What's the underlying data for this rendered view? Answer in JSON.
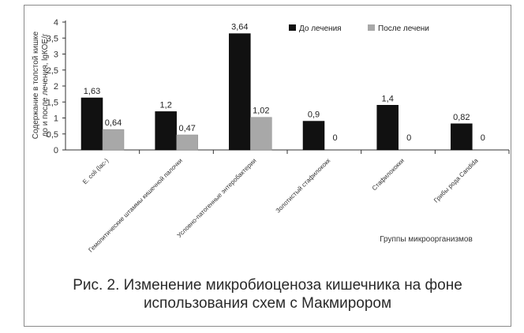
{
  "chart_data": {
    "type": "bar",
    "ylabel": "Содержание в толстой кишке до и после лечения, lgКОЕ/г",
    "xlabel": "Группы микроорганизмов",
    "ylim": [
      0,
      4
    ],
    "yticks": [
      "0",
      "0,5",
      "1",
      "1,5",
      "2",
      "2,5",
      "3",
      "3,5",
      "4"
    ],
    "ytick_values": [
      0,
      0.5,
      1,
      1.5,
      2,
      2.5,
      3,
      3.5,
      4
    ],
    "categories": [
      "E. coli (lac-)",
      "Гемолитические штаммы кишечной палочки",
      "Условно-патогенные энтеробактерии",
      "Золотистый стафилококк",
      "Стафилококки",
      "Грибы рода Candida"
    ],
    "series": [
      {
        "name": "До лечения",
        "color": "#111111",
        "values": [
          1.63,
          1.2,
          3.64,
          0.9,
          1.4,
          0.82
        ],
        "labels": [
          "1,63",
          "1,2",
          "3,64",
          "0,9",
          "1,4",
          "0,82"
        ]
      },
      {
        "name": "После лечени",
        "color": "#a8a8a8",
        "values": [
          0.64,
          0.47,
          1.02,
          0,
          0,
          0
        ],
        "labels": [
          "0,64",
          "0,47",
          "1,02",
          "0",
          "0",
          "0"
        ]
      }
    ],
    "legend_position": "top-right",
    "grid": false
  },
  "caption": {
    "line1": "Рис. 2. Изменение микробиоценоза кишечника на фоне",
    "line2": "использования схем с Макмирором"
  }
}
